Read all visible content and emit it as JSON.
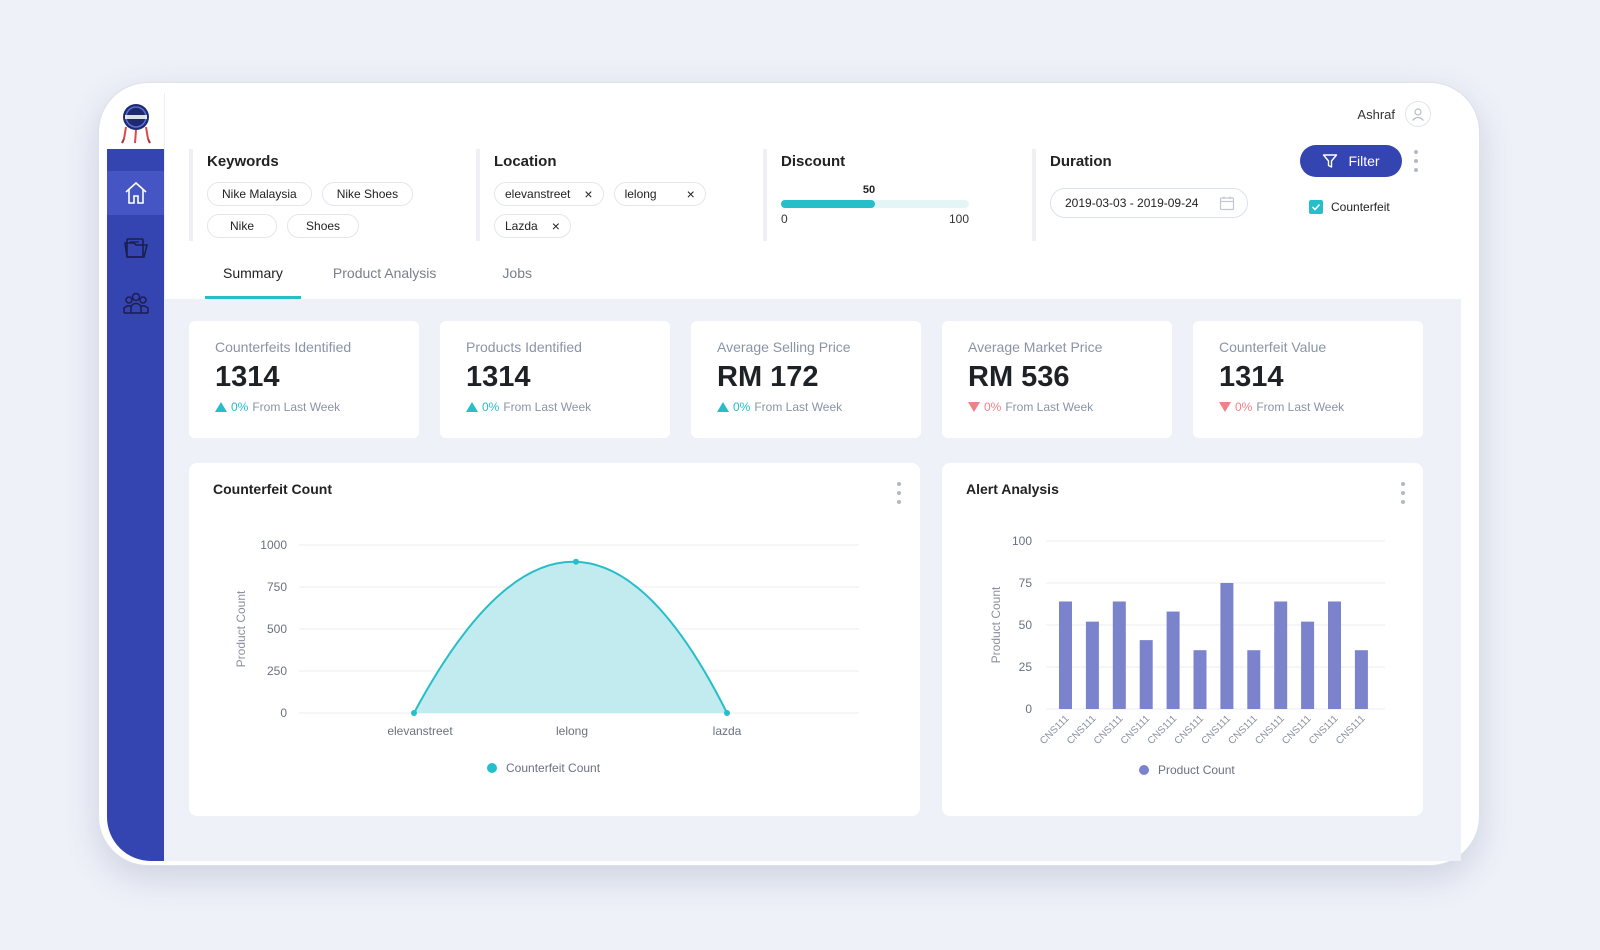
{
  "user": {
    "name": "Ashraf"
  },
  "filters": {
    "keywords": {
      "label": "Keywords",
      "chips": [
        "Nike Malaysia",
        "Nike Shoes",
        "Nike",
        "Shoes"
      ]
    },
    "location": {
      "label": "Location",
      "chips": [
        "elevanstreet",
        "lelong",
        "Lazda"
      ],
      "remove_symbol": "×"
    },
    "discount": {
      "label": "Discount",
      "value": 50,
      "min": 0,
      "max": 100
    },
    "duration": {
      "label": "Duration",
      "value": "2019-03-03 - 2019-09-24"
    },
    "filter_button": "Filter",
    "counterfeit_checkbox": {
      "label": "Counterfeit",
      "checked": true
    }
  },
  "tabs": [
    {
      "label": "Summary",
      "active": true
    },
    {
      "label": "Product Analysis",
      "active": false
    },
    {
      "label": "Jobs",
      "active": false
    }
  ],
  "stats": [
    {
      "title": "Counterfeits Identified",
      "value": "1314",
      "pct": "0%",
      "trend_label": "From Last Week",
      "direction": "up"
    },
    {
      "title": "Products Identified",
      "value": "1314",
      "pct": "0%",
      "trend_label": "From Last Week",
      "direction": "up"
    },
    {
      "title": "Average Selling Price",
      "value": "RM 172",
      "pct": "0%",
      "trend_label": "From Last Week",
      "direction": "up"
    },
    {
      "title": "Average Market Price",
      "value": "RM 536",
      "pct": "0%",
      "trend_label": "From Last Week",
      "direction": "down"
    },
    {
      "title": "Counterfeit Value",
      "value": "1314",
      "pct": "0%",
      "trend_label": "From Last Week",
      "direction": "down"
    }
  ],
  "colors": {
    "accent": "#26bec8",
    "primary": "#3444b0",
    "down": "#f0808a",
    "bar": "#7b83cc",
    "area_fill": "#bfeaee"
  },
  "chart_data": [
    {
      "type": "area",
      "title": "Counterfeit Count",
      "ylabel": "Product Count",
      "xlabel": "",
      "categories": [
        "elevanstreet",
        "lelong",
        "lazda"
      ],
      "series": [
        {
          "name": "Counterfeit Count",
          "values": [
            0,
            900,
            0
          ]
        }
      ],
      "ylim": [
        0,
        1000
      ],
      "yticks": [
        0,
        250,
        500,
        750,
        1000
      ],
      "grid": true,
      "legend": "bottom"
    },
    {
      "type": "bar",
      "title": "Alert Analysis",
      "ylabel": "Product Count",
      "xlabel": "",
      "categories": [
        "CNS111",
        "CNS111",
        "CNS111",
        "CNS111",
        "CNS111",
        "CNS111",
        "CNS111",
        "CNS111",
        "CNS111",
        "CNS111",
        "CNS111",
        "CNS111"
      ],
      "series": [
        {
          "name": "Product  Count",
          "values": [
            64,
            52,
            64,
            41,
            58,
            35,
            75,
            35,
            64,
            52,
            64,
            35
          ]
        }
      ],
      "ylim": [
        0,
        100
      ],
      "yticks": [
        0,
        25,
        50,
        75,
        100
      ],
      "grid": true,
      "legend": "bottom"
    }
  ]
}
